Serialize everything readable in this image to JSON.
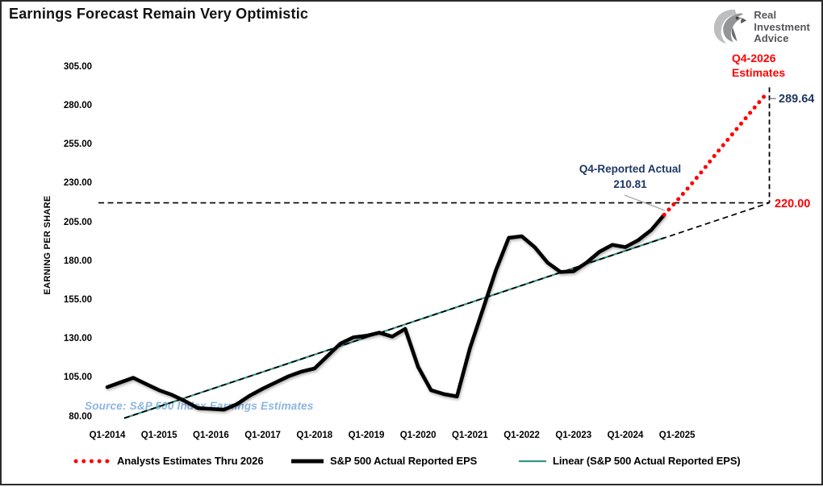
{
  "header": {
    "title": "Earnings Forecast Remain Very Optimistic"
  },
  "logo": {
    "line1": "Real",
    "line2": "Investment",
    "line3": "Advice"
  },
  "source_note": "Source: S&P 500 Index Earnings Estimates",
  "annotations": {
    "estimate_label_line1": "Q4-2026",
    "estimate_label_line2": "Estimates",
    "estimate_value": "289.64",
    "reported_label": "Q4-Reported Actual",
    "reported_value": "210.81",
    "trend_value": "220.00"
  },
  "colors": {
    "red": "#ff0000",
    "navy": "#1f3864",
    "teal": "#359486",
    "black": "#000000",
    "source_blue": "#8db4e2",
    "logo_grey": "#55565a"
  },
  "chart_data": {
    "type": "line",
    "title": "Earnings Forecast Remain Very Optimistic",
    "xlabel": "",
    "ylabel": "EARNING PER SHARE",
    "ylim": [
      80,
      305
    ],
    "y_ticks": [
      305,
      280,
      255,
      230,
      205,
      180,
      155,
      130,
      105,
      80
    ],
    "x_ticks": [
      "Q1-2014",
      "Q1-2015",
      "Q1-2016",
      "Q1-2017",
      "Q1-2018",
      "Q1-2019",
      "Q1-2020",
      "Q1-2021",
      "Q1-2022",
      "Q1-2023",
      "Q1-2024",
      "Q1-2025"
    ],
    "grid": false,
    "legend_position": "bottom",
    "series": [
      {
        "name": "S&P 500 Actual Reported EPS",
        "type": "line",
        "style": "solid-thick",
        "color": "#000000",
        "start": "Q1-2014",
        "frequency": "quarterly",
        "start_q": 0,
        "values": [
          100,
          103,
          106,
          102,
          98,
          95,
          91,
          86.5,
          86,
          85.5,
          89,
          94.5,
          99,
          103,
          107,
          110,
          112,
          120,
          128,
          132,
          133,
          135,
          132.5,
          137.5,
          113,
          98,
          95.5,
          94,
          125,
          150,
          175,
          196,
          197,
          190,
          180,
          174,
          174.5,
          180,
          187,
          191.5,
          190,
          194.5,
          201,
          210.81
        ]
      },
      {
        "name": "Analysts Estimates Thru 2026",
        "type": "line",
        "style": "dotted",
        "color": "#ff0000",
        "start": "Q4-2024",
        "end": "Q4-2026",
        "frequency": "quarterly",
        "start_q": 43,
        "values": [
          210.81,
          220,
          229.5,
          239.5,
          250,
          260,
          270,
          280,
          289.64
        ]
      }
    ],
    "trendline": {
      "name": "Linear (S&P 500 Actual Reported EPS)",
      "color": "#359486",
      "start_q": 1.3,
      "start_value": 80,
      "end_q": 43,
      "end_value": 196,
      "ext_q": 51,
      "ext_value": 218.5,
      "extension_style": "black-dashed",
      "extension_label": "220.00"
    },
    "reference_lines": [
      {
        "axis": "y",
        "value": 220,
        "style": "dashed",
        "label": "220.00",
        "label_color": "#ff0000"
      },
      {
        "axis": "x",
        "at": "Q4-2026",
        "style": "dashed",
        "top_label": "289.64"
      }
    ],
    "legend": [
      {
        "label": "Analysts Estimates Thru 2026",
        "color": "#ff0000",
        "style": "dotted"
      },
      {
        "label": "S&P 500 Actual Reported EPS",
        "color": "#000000",
        "style": "solid-thick"
      },
      {
        "label": "Linear (S&P 500 Actual Reported EPS)",
        "color": "#359486",
        "style": "solid-thin"
      }
    ]
  }
}
